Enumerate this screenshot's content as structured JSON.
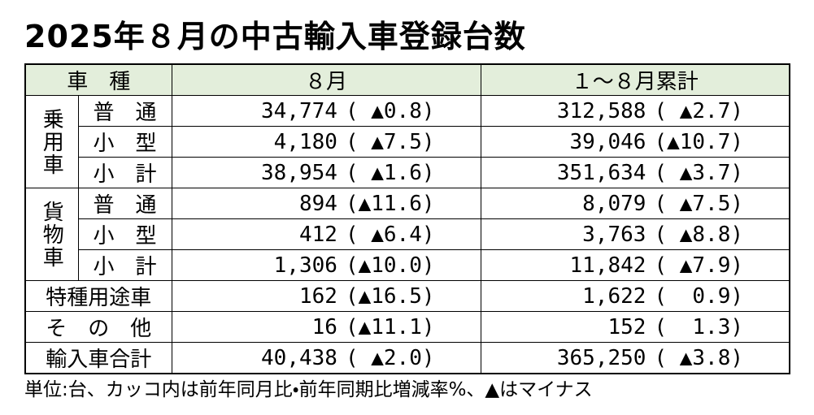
{
  "title": "2025年８月の中古輸入車登録台数",
  "table": {
    "header": [
      "車　種",
      "８月",
      "１～８月累計"
    ],
    "groups": [
      {
        "label": "乗用車",
        "rows": [
          [
            "普　通",
            "34,774",
            "( ▲0.8)",
            "312,588",
            "( ▲2.7)"
          ],
          [
            "小　型",
            "4,180",
            "( ▲7.5)",
            "39,046",
            "(▲10.7)"
          ],
          [
            "小　計",
            "38,954",
            "( ▲1.6)",
            "351,634",
            "( ▲3.7)"
          ]
        ]
      },
      {
        "label": "貨物車",
        "rows": [
          [
            "普　通",
            "894",
            "(▲11.6)",
            "8,079",
            "( ▲7.5)"
          ],
          [
            "小　型",
            "412",
            "( ▲6.4)",
            "3,763",
            "( ▲8.8)"
          ],
          [
            "小　計",
            "1,306",
            "(▲10.0)",
            "11,842",
            "( ▲7.9)"
          ]
        ]
      }
    ],
    "totals": [
      [
        "特種用途車",
        "162",
        "(▲16.5)",
        "1,622",
        "(  0.9)"
      ],
      [
        "そ　の　他",
        "16",
        "(▲11.1)",
        "152",
        "(  1.3)"
      ],
      [
        "輸入車合計",
        "40,438",
        "( ▲2.0)",
        "365,250",
        "( ▲3.8)"
      ]
    ]
  },
  "note": "単位:台、カッコ内は前年同月比・前年同期比増減率%、▲はマイナス"
}
